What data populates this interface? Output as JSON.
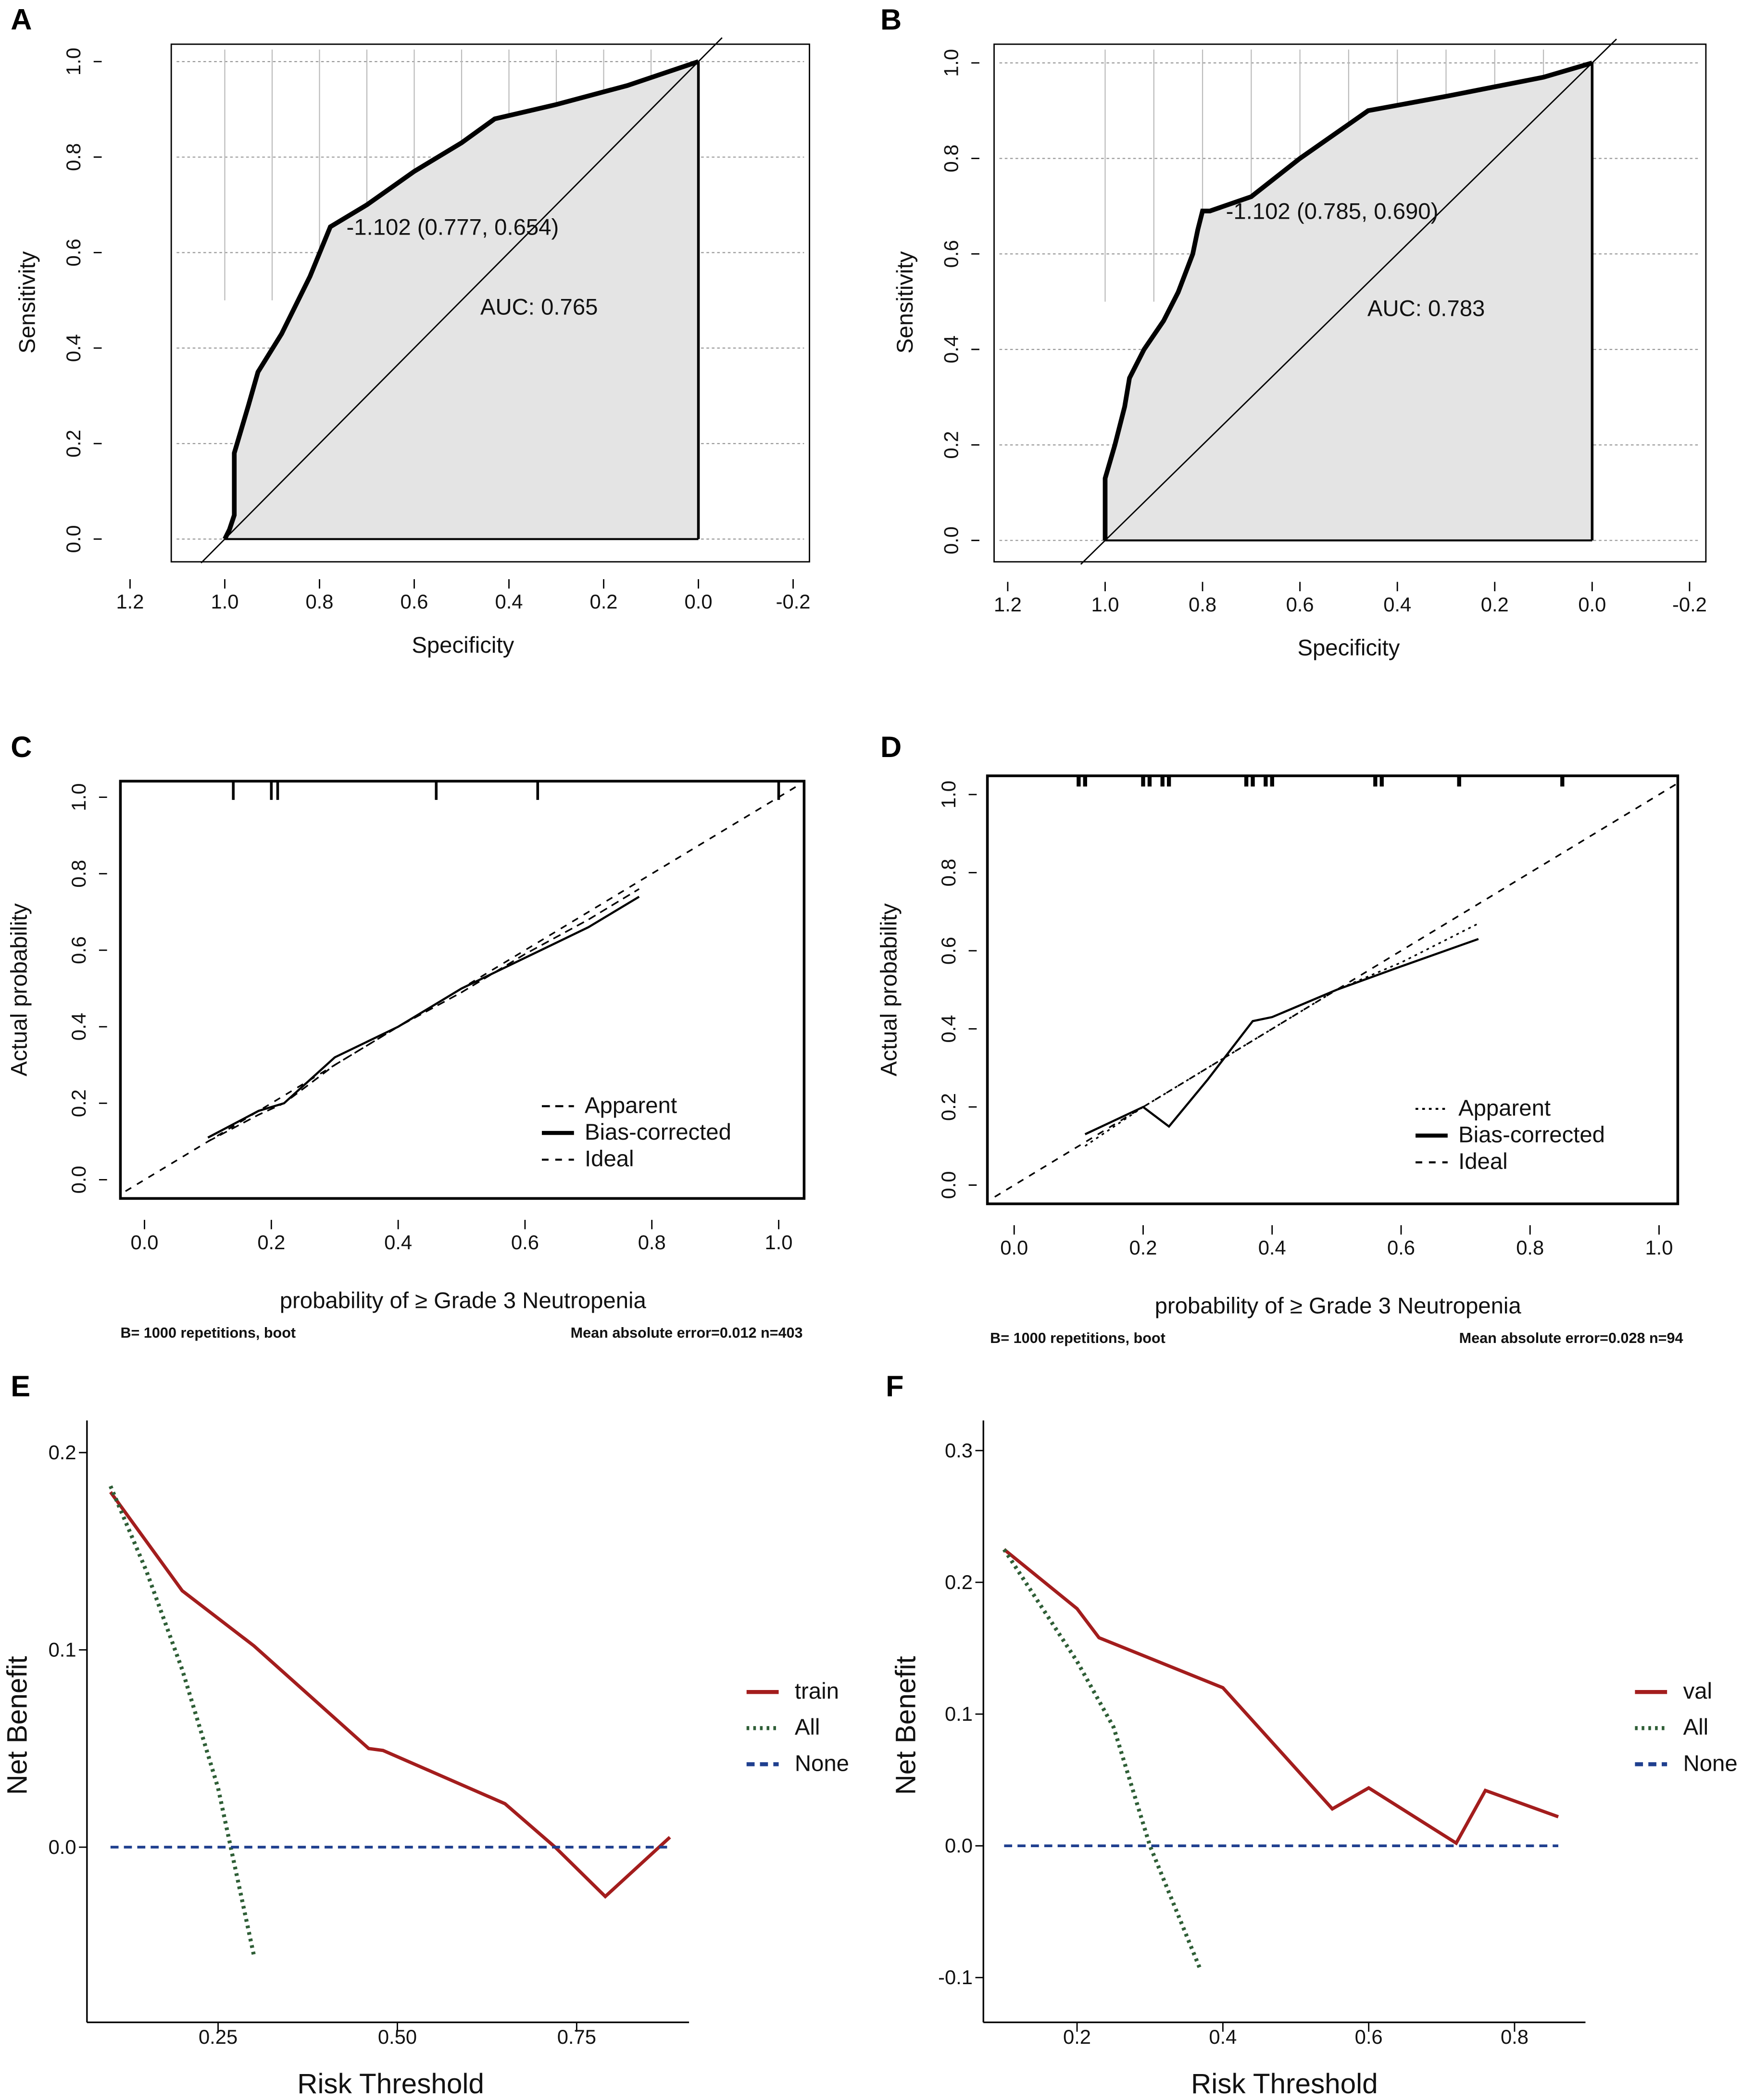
{
  "chart_data": [
    {
      "id": "A",
      "panel_label": "A",
      "type": "line",
      "subtype": "roc",
      "xlabel": "Specificity",
      "ylabel": "Sensitivity",
      "xlim": [
        1.2,
        -0.2
      ],
      "ylim": [
        0,
        1
      ],
      "x_reversed": true,
      "grid": true,
      "xticks": [
        "1.2",
        "1.0",
        "0.8",
        "0.6",
        "0.4",
        "0.2",
        "0.0",
        "-0.2"
      ],
      "xtick_values": [
        1.2,
        1.0,
        0.8,
        0.6,
        0.4,
        0.2,
        0.0,
        -0.2
      ],
      "yticks": [
        "0.0",
        "0.2",
        "0.4",
        "0.6",
        "0.8",
        "1.0"
      ],
      "ytick_values": [
        0,
        0.2,
        0.4,
        0.6,
        0.8,
        1.0
      ],
      "curve": [
        [
          1.0,
          0
        ],
        [
          0.99,
          0.02
        ],
        [
          0.98,
          0.05
        ],
        [
          0.98,
          0.18
        ],
        [
          0.95,
          0.28
        ],
        [
          0.93,
          0.35
        ],
        [
          0.88,
          0.43
        ],
        [
          0.82,
          0.55
        ],
        [
          0.777,
          0.654
        ],
        [
          0.7,
          0.7
        ],
        [
          0.6,
          0.77
        ],
        [
          0.5,
          0.83
        ],
        [
          0.43,
          0.88
        ],
        [
          0.3,
          0.91
        ],
        [
          0.15,
          0.95
        ],
        [
          0,
          1.0
        ]
      ],
      "threshold_label": "-1.102 (0.777, 0.654)",
      "auc_label": "AUC: 0.765",
      "colors": {
        "fill": "#e4e4e4",
        "line": "#000000"
      }
    },
    {
      "id": "B",
      "panel_label": "B",
      "type": "line",
      "subtype": "roc",
      "xlabel": "Specificity",
      "ylabel": "Sensitivity",
      "xlim": [
        1.2,
        -0.2
      ],
      "ylim": [
        0,
        1
      ],
      "x_reversed": true,
      "grid": true,
      "xticks": [
        "1.2",
        "1.0",
        "0.8",
        "0.6",
        "0.4",
        "0.2",
        "0.0",
        "-0.2"
      ],
      "xtick_values": [
        1.2,
        1.0,
        0.8,
        0.6,
        0.4,
        0.2,
        0.0,
        -0.2
      ],
      "yticks": [
        "0.0",
        "0.2",
        "0.4",
        "0.6",
        "0.8",
        "1.0"
      ],
      "ytick_values": [
        0,
        0.2,
        0.4,
        0.6,
        0.8,
        1.0
      ],
      "curve": [
        [
          1,
          0
        ],
        [
          1,
          0.13
        ],
        [
          0.98,
          0.2
        ],
        [
          0.96,
          0.28
        ],
        [
          0.95,
          0.34
        ],
        [
          0.92,
          0.4
        ],
        [
          0.88,
          0.46
        ],
        [
          0.85,
          0.52
        ],
        [
          0.82,
          0.6
        ],
        [
          0.81,
          0.65
        ],
        [
          0.8,
          0.69
        ],
        [
          0.785,
          0.69
        ],
        [
          0.7,
          0.72
        ],
        [
          0.6,
          0.8
        ],
        [
          0.46,
          0.9
        ],
        [
          0.3,
          0.93
        ],
        [
          0.1,
          0.97
        ],
        [
          0,
          1
        ]
      ],
      "threshold_label": "-1.102 (0.785, 0.690)",
      "auc_label": "AUC: 0.783",
      "colors": {
        "fill": "#e4e4e4",
        "line": "#000000"
      }
    },
    {
      "id": "C",
      "panel_label": "C",
      "type": "line",
      "subtype": "calibration",
      "xlabel": "probability of ≥ Grade 3 Neutropenia",
      "ylabel": "Actual probability",
      "xlim": [
        -0.04,
        1.04
      ],
      "ylim": [
        -0.04,
        1.04
      ],
      "xticks": [
        "0.0",
        "0.2",
        "0.4",
        "0.6",
        "0.8",
        "1.0"
      ],
      "xtick_values": [
        0,
        0.2,
        0.4,
        0.6,
        0.8,
        1.0
      ],
      "yticks": [
        "0.0",
        "0.2",
        "0.4",
        "0.6",
        "0.8",
        "1.0"
      ],
      "ytick_values": [
        0,
        0.2,
        0.4,
        0.6,
        0.8,
        1.0
      ],
      "rug": [
        0.14,
        0.2,
        0.21,
        0.46,
        0.62,
        1.0
      ],
      "series": [
        {
          "name": "Apparent",
          "style": "dashed",
          "points": [
            [
              0.1,
              0.1
            ],
            [
              0.18,
              0.17
            ],
            [
              0.22,
              0.2
            ],
            [
              0.3,
              0.3
            ],
            [
              0.4,
              0.4
            ],
            [
              0.5,
              0.49
            ],
            [
              0.6,
              0.59
            ],
            [
              0.7,
              0.68
            ],
            [
              0.78,
              0.76
            ]
          ]
        },
        {
          "name": "Bias-corrected",
          "style": "solid",
          "points": [
            [
              0.1,
              0.11
            ],
            [
              0.18,
              0.18
            ],
            [
              0.22,
              0.2
            ],
            [
              0.3,
              0.32
            ],
            [
              0.4,
              0.4
            ],
            [
              0.5,
              0.5
            ],
            [
              0.6,
              0.58
            ],
            [
              0.7,
              0.66
            ],
            [
              0.78,
              0.74
            ]
          ]
        },
        {
          "name": "Ideal",
          "style": "longdash",
          "points": [
            [
              -0.03,
              -0.03
            ],
            [
              1.03,
              1.03
            ]
          ]
        }
      ],
      "footer_left": "B= 1000 repetitions, boot",
      "footer_right": "Mean absolute error=0.012 n=403"
    },
    {
      "id": "D",
      "panel_label": "D",
      "type": "line",
      "subtype": "calibration",
      "xlabel": "probability of ≥ Grade 3 Neutropenia",
      "ylabel": "Actual probability",
      "xlim": [
        -0.04,
        1.04
      ],
      "ylim": [
        -0.02,
        1.03
      ],
      "xticks": [
        "0.0",
        "0.2",
        "0.4",
        "0.6",
        "0.8",
        "1.0"
      ],
      "xtick_values": [
        0,
        0.2,
        0.4,
        0.6,
        0.8,
        1.0
      ],
      "yticks": [
        "0.0",
        "0.2",
        "0.4",
        "0.6",
        "0.8",
        "1.0"
      ],
      "ytick_values": [
        0,
        0.2,
        0.4,
        0.6,
        0.8,
        1.0
      ],
      "rug": [
        0.1,
        0.11,
        0.2,
        0.21,
        0.23,
        0.24,
        0.36,
        0.37,
        0.39,
        0.4,
        0.56,
        0.57,
        0.69,
        0.85
      ],
      "series": [
        {
          "name": "Apparent",
          "style": "dotted",
          "points": [
            [
              0.11,
              0.1
            ],
            [
              0.2,
              0.2
            ],
            [
              0.3,
              0.3
            ],
            [
              0.4,
              0.4
            ],
            [
              0.5,
              0.5
            ],
            [
              0.6,
              0.57
            ],
            [
              0.72,
              0.67
            ]
          ]
        },
        {
          "name": "Bias-corrected",
          "style": "solid",
          "points": [
            [
              0.11,
              0.13
            ],
            [
              0.2,
              0.2
            ],
            [
              0.24,
              0.15
            ],
            [
              0.3,
              0.27
            ],
            [
              0.37,
              0.42
            ],
            [
              0.4,
              0.43
            ],
            [
              0.5,
              0.5
            ],
            [
              0.6,
              0.56
            ],
            [
              0.72,
              0.63
            ]
          ]
        },
        {
          "name": "Ideal",
          "style": "longdash",
          "points": [
            [
              -0.03,
              -0.03
            ],
            [
              1.03,
              1.03
            ]
          ]
        }
      ],
      "footer_left": "B= 1000 repetitions, boot",
      "footer_right": "Mean absolute error=0.028 n=94"
    },
    {
      "id": "E",
      "panel_label": "E",
      "type": "line",
      "subtype": "decision-curve",
      "xlabel": "Risk Threshold",
      "ylabel": "Net Benefit",
      "xticks": [
        "0.25",
        "0.50",
        "0.75"
      ],
      "xtick_values": [
        0.25,
        0.5,
        0.75
      ],
      "yticks": [
        "0.0",
        "0.1",
        "0.2"
      ],
      "ytick_values": [
        0,
        0.1,
        0.2
      ],
      "series": [
        {
          "name": "train",
          "color": "#a31d1d",
          "style": "solid",
          "points": [
            [
              0.1,
              0.18
            ],
            [
              0.2,
              0.13
            ],
            [
              0.3,
              0.102
            ],
            [
              0.46,
              0.05
            ],
            [
              0.48,
              0.049
            ],
            [
              0.65,
              0.022
            ],
            [
              0.72,
              0
            ],
            [
              0.79,
              -0.025
            ],
            [
              0.88,
              0.005
            ]
          ]
        },
        {
          "name": "All",
          "color": "#2e5e36",
          "style": "dotted",
          "points": [
            [
              0.1,
              0.183
            ],
            [
              0.15,
              0.14
            ],
            [
              0.2,
              0.09
            ],
            [
              0.25,
              0.03
            ],
            [
              0.3,
              -0.055
            ]
          ]
        },
        {
          "name": "None",
          "color": "#1f3f8f",
          "style": "dashed",
          "points": [
            [
              0.1,
              0
            ],
            [
              0.88,
              0
            ]
          ]
        }
      ]
    },
    {
      "id": "F",
      "panel_label": "F",
      "type": "line",
      "subtype": "decision-curve",
      "xlabel": "Risk Threshold",
      "ylabel": "Net Benefit",
      "xticks": [
        "0.2",
        "0.4",
        "0.6",
        "0.8"
      ],
      "xtick_values": [
        0.2,
        0.4,
        0.6,
        0.8
      ],
      "yticks": [
        "-0.1",
        "0.0",
        "0.1",
        "0.2",
        "0.3"
      ],
      "ytick_values": [
        -0.1,
        0,
        0.1,
        0.2,
        0.3
      ],
      "series": [
        {
          "name": "val",
          "color": "#a31d1d",
          "style": "solid",
          "points": [
            [
              0.1,
              0.225
            ],
            [
              0.2,
              0.18
            ],
            [
              0.23,
              0.158
            ],
            [
              0.4,
              0.12
            ],
            [
              0.55,
              0.028
            ],
            [
              0.6,
              0.044
            ],
            [
              0.72,
              0.002
            ],
            [
              0.76,
              0.042
            ],
            [
              0.86,
              0.022
            ]
          ]
        },
        {
          "name": "All",
          "color": "#2e5e36",
          "style": "dotted",
          "points": [
            [
              0.1,
              0.225
            ],
            [
              0.2,
              0.14
            ],
            [
              0.25,
              0.09
            ],
            [
              0.3,
              0.0
            ],
            [
              0.37,
              -0.095
            ]
          ]
        },
        {
          "name": "None",
          "color": "#1f3f8f",
          "style": "dashed",
          "points": [
            [
              0.1,
              0
            ],
            [
              0.86,
              0
            ]
          ]
        }
      ]
    }
  ]
}
